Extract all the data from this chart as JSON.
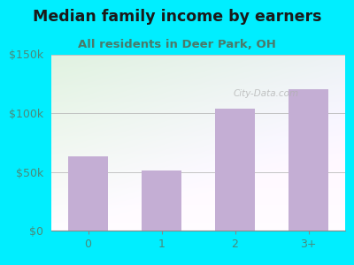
{
  "title": "Median family income by earners",
  "subtitle": "All residents in Deer Park, OH",
  "categories": [
    "0",
    "1",
    "2",
    "3+"
  ],
  "values": [
    63000,
    51000,
    104000,
    120000
  ],
  "bar_color": "#c4aed4",
  "ylim": [
    0,
    150000
  ],
  "yticks": [
    0,
    50000,
    100000,
    150000
  ],
  "ytick_labels": [
    "$0",
    "$50k",
    "$100k",
    "$150k"
  ],
  "bg_outer": "#00eeff",
  "title_color": "#1a1a1a",
  "subtitle_color": "#4a7a6a",
  "tick_color": "#4a8a7a",
  "watermark": "City-Data.com",
  "title_fontsize": 12.5,
  "subtitle_fontsize": 9.5
}
